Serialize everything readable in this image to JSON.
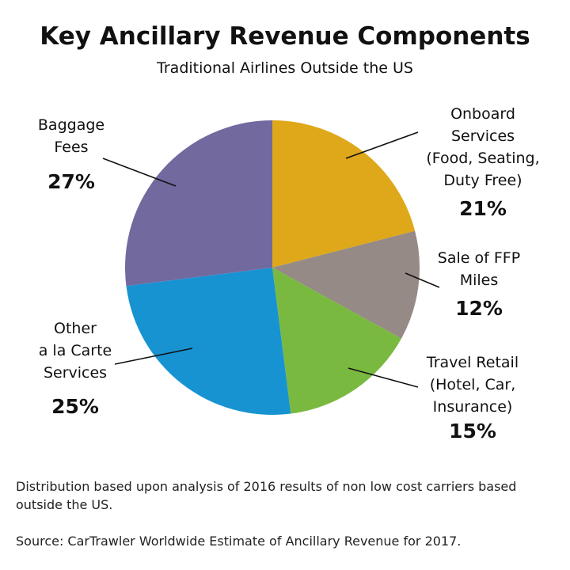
{
  "chart_data": {
    "type": "pie",
    "title": "Key Ancillary Revenue Components",
    "subtitle": "Traditional Airlines Outside the US",
    "categories": [
      "Onboard\nServices\n(Food, Seating,\nDuty Free)",
      "Sale of FFP\nMiles",
      "Travel Retail\n(Hotel, Car,\nInsurance)",
      "Other\na la Carte\nServices",
      "Baggage\nFees"
    ],
    "values": [
      21,
      12,
      15,
      25,
      27
    ],
    "value_labels": [
      "21%",
      "12%",
      "15%",
      "25%",
      "27%"
    ],
    "colors": [
      "#dea81a",
      "#958a86",
      "#7ab940",
      "#1793d2",
      "#72699f"
    ],
    "notes": [
      "Distribution based upon analysis of 2016 results of non low cost carriers based outside the US.",
      "Source: CarTrawler Worldwide Estimate of Ancillary Revenue for 2017."
    ]
  }
}
